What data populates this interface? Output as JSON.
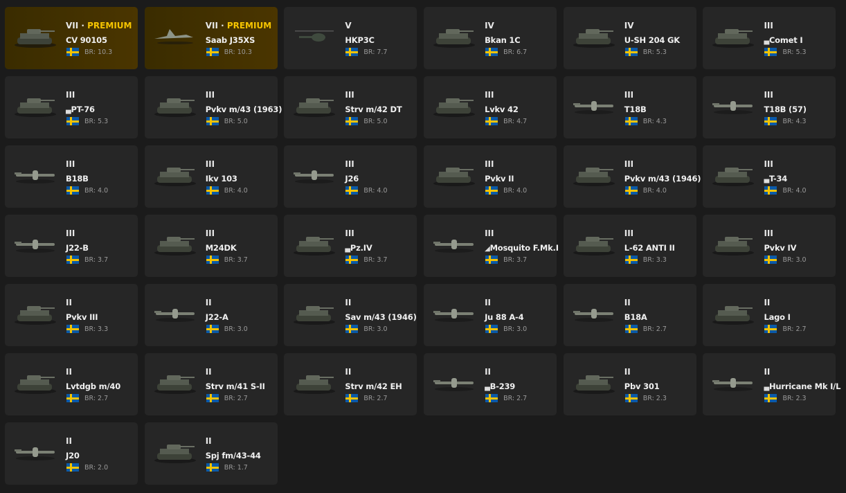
{
  "colors": {
    "premium": "#f5c400",
    "card": "#262626",
    "premium_card": "#3f2f00",
    "background": "#1b1b1b"
  },
  "br_prefix": "BR: ",
  "premium_label": "PREMIUM",
  "vehicles": [
    {
      "tier": "VII",
      "premium": true,
      "name": "CV 90105",
      "br": "10.3",
      "icon": "tank-icon"
    },
    {
      "tier": "VII",
      "premium": true,
      "name": "Saab J35XS",
      "br": "10.3",
      "icon": "jet-icon"
    },
    {
      "tier": "V",
      "name": "HKP3C",
      "br": "7.7",
      "icon": "helicopter-icon"
    },
    {
      "tier": "IV",
      "name": "Bkan 1C",
      "br": "6.7",
      "icon": "tank-icon"
    },
    {
      "tier": "IV",
      "name": "U-SH 204 GK",
      "br": "5.3",
      "icon": "tank-icon"
    },
    {
      "tier": "III",
      "mark": "▄",
      "name": "Comet I",
      "br": "5.3",
      "icon": "tank-icon"
    },
    {
      "tier": "III",
      "mark": "▄",
      "name": "PT-76",
      "br": "5.3",
      "icon": "tank-icon"
    },
    {
      "tier": "III",
      "name": "Pvkv m/43 (1963)",
      "br": "5.0",
      "icon": "tank-icon"
    },
    {
      "tier": "III",
      "name": "Strv m/42 DT",
      "br": "5.0",
      "icon": "tank-icon"
    },
    {
      "tier": "III",
      "name": "Lvkv 42",
      "br": "4.7",
      "icon": "tank-icon"
    },
    {
      "tier": "III",
      "name": "T18B",
      "br": "4.3",
      "icon": "plane-icon"
    },
    {
      "tier": "III",
      "name": "T18B (57)",
      "br": "4.3",
      "icon": "plane-icon"
    },
    {
      "tier": "III",
      "name": "B18B",
      "br": "4.0",
      "icon": "plane-icon"
    },
    {
      "tier": "III",
      "name": "Ikv 103",
      "br": "4.0",
      "icon": "tank-icon"
    },
    {
      "tier": "III",
      "name": "J26",
      "br": "4.0",
      "icon": "plane-icon"
    },
    {
      "tier": "III",
      "name": "Pvkv II",
      "br": "4.0",
      "icon": "tank-icon"
    },
    {
      "tier": "III",
      "name": "Pvkv m/43 (1946)",
      "br": "4.0",
      "icon": "tank-icon"
    },
    {
      "tier": "III",
      "mark": "▄",
      "name": "T-34",
      "br": "4.0",
      "icon": "tank-icon"
    },
    {
      "tier": "III",
      "name": "J22-B",
      "br": "3.7",
      "icon": "plane-icon"
    },
    {
      "tier": "III",
      "name": "M24DK",
      "br": "3.7",
      "icon": "tank-icon"
    },
    {
      "tier": "III",
      "mark": "▄",
      "name": "Pz.IV",
      "br": "3.7",
      "icon": "tank-icon"
    },
    {
      "tier": "III",
      "mark": "◢",
      "name": "Mosquito F.Mk.I",
      "br": "3.7",
      "icon": "plane-icon"
    },
    {
      "tier": "III",
      "name": "L-62 ANTI II",
      "br": "3.3",
      "icon": "tank-icon"
    },
    {
      "tier": "III",
      "name": "Pvkv IV",
      "br": "3.0",
      "icon": "tank-icon"
    },
    {
      "tier": "II",
      "name": "Pvkv III",
      "br": "3.3",
      "icon": "tank-icon"
    },
    {
      "tier": "II",
      "name": "J22-A",
      "br": "3.0",
      "icon": "plane-icon"
    },
    {
      "tier": "II",
      "name": "Sav m/43 (1946)",
      "br": "3.0",
      "icon": "tank-icon"
    },
    {
      "tier": "II",
      "name": "Ju 88 A-4",
      "br": "3.0",
      "icon": "plane-icon"
    },
    {
      "tier": "II",
      "name": "B18A",
      "br": "2.7",
      "icon": "plane-icon"
    },
    {
      "tier": "II",
      "name": "Lago I",
      "br": "2.7",
      "icon": "tank-icon"
    },
    {
      "tier": "II",
      "name": "Lvtdgb m/40",
      "br": "2.7",
      "icon": "tank-icon"
    },
    {
      "tier": "II",
      "name": "Strv m/41 S-II",
      "br": "2.7",
      "icon": "tank-icon"
    },
    {
      "tier": "II",
      "name": "Strv m/42 EH",
      "br": "2.7",
      "icon": "tank-icon"
    },
    {
      "tier": "II",
      "mark": "▄",
      "name": "B-239",
      "br": "2.7",
      "icon": "plane-icon"
    },
    {
      "tier": "II",
      "name": "Pbv 301",
      "br": "2.3",
      "icon": "tank-icon"
    },
    {
      "tier": "II",
      "mark": "▄",
      "name": "Hurricane Mk I/L",
      "br": "2.3",
      "icon": "plane-icon"
    },
    {
      "tier": "II",
      "name": "J20",
      "br": "2.0",
      "icon": "plane-icon"
    },
    {
      "tier": "II",
      "name": "Spj fm/43-44",
      "br": "1.7",
      "icon": "tank-icon"
    }
  ]
}
